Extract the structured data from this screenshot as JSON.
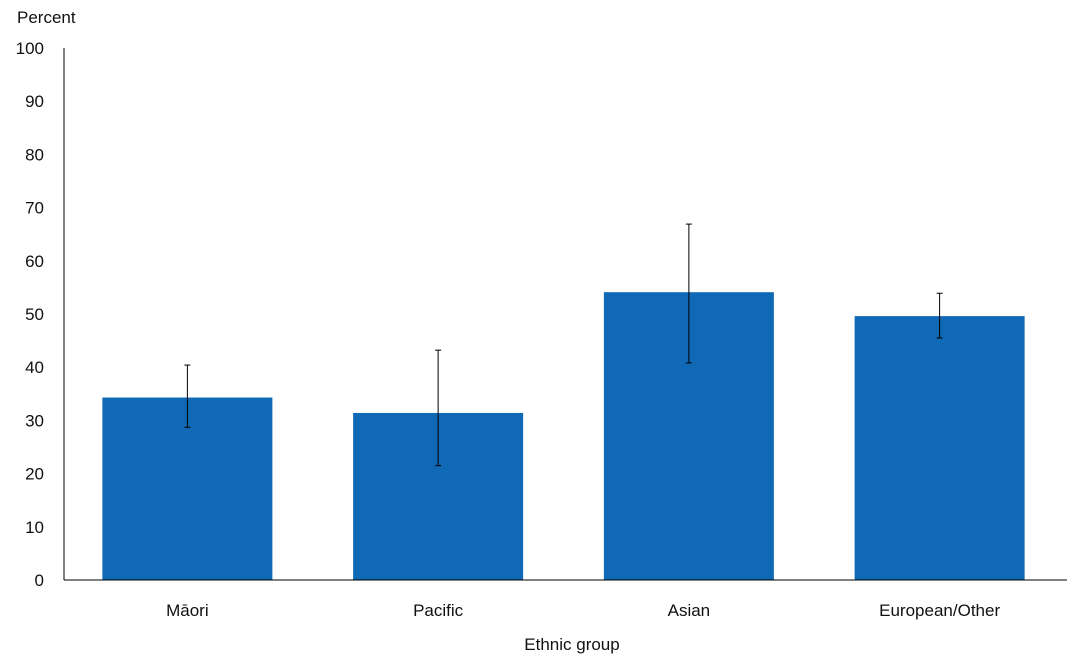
{
  "chart_data": {
    "type": "bar",
    "title": "",
    "ylabel": "Percent",
    "xlabel": "Ethnic group",
    "ylim": [
      0,
      100
    ],
    "yticks": [
      0,
      10,
      20,
      30,
      40,
      50,
      60,
      70,
      80,
      90,
      100
    ],
    "categories": [
      "Māori",
      "Pacific",
      "Asian",
      "European/Other"
    ],
    "values": [
      34.3,
      31.4,
      54.1,
      49.6
    ],
    "error_low": [
      28.7,
      21.5,
      40.8,
      45.5
    ],
    "error_high": [
      40.4,
      43.2,
      66.9,
      53.9
    ],
    "grid": false,
    "bar_color": "#0f69b4",
    "axis_color": "#000000"
  }
}
